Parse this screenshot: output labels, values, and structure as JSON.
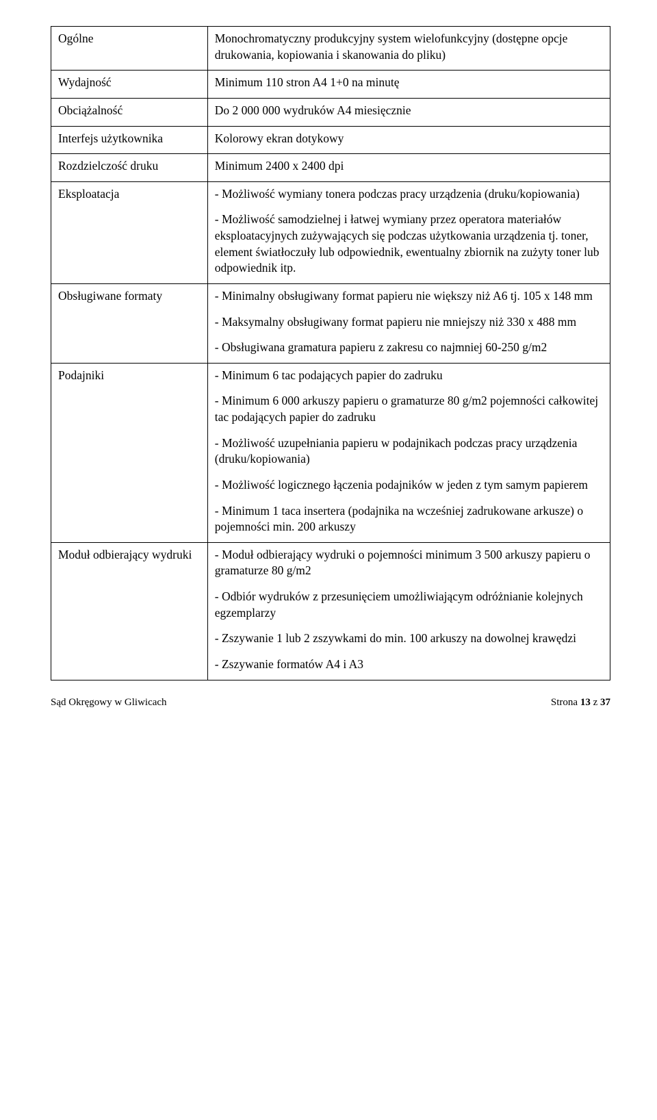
{
  "rows": [
    {
      "label": "Ogólne",
      "paras": [
        "Monochromatyczny produkcyjny system wielofunkcyjny (dostępne opcje drukowania, kopiowania i skanowania do pliku)"
      ]
    },
    {
      "label": "Wydajność",
      "paras": [
        "Minimum 110 stron A4 1+0 na minutę"
      ]
    },
    {
      "label": "Obciążalność",
      "paras": [
        "Do 2 000 000 wydruków A4 miesięcznie"
      ]
    },
    {
      "label": "Interfejs użytkownika",
      "paras": [
        "Kolorowy ekran dotykowy"
      ]
    },
    {
      "label": "Rozdzielczość druku",
      "paras": [
        "Minimum 2400 x 2400 dpi"
      ]
    },
    {
      "label": "Eksploatacja",
      "paras": [
        "- Możliwość wymiany tonera podczas pracy urządzenia (druku/kopiowania)",
        "- Możliwość samodzielnej i łatwej wymiany przez operatora materiałów eksploatacyjnych zużywających się podczas użytkowania urządzenia tj. toner, element światłoczuły lub odpowiednik, ewentualny zbiornik na zużyty toner lub odpowiednik itp."
      ]
    },
    {
      "label": "Obsługiwane formaty",
      "paras": [
        "- Minimalny obsługiwany format papieru nie większy niż A6 tj. 105 x 148 mm",
        "- Maksymalny obsługiwany format papieru nie mniejszy niż 330 x 488 mm",
        "- Obsługiwana gramatura papieru z zakresu co najmniej 60-250 g/m2"
      ]
    },
    {
      "label": "Podajniki",
      "paras": [
        "- Minimum 6 tac podających papier do zadruku",
        "- Minimum 6 000 arkuszy papieru o gramaturze 80 g/m2 pojemności całkowitej tac podających papier do zadruku",
        "- Możliwość uzupełniania papieru w podajnikach podczas pracy urządzenia (druku/kopiowania)",
        "- Możliwość logicznego łączenia podajników w jeden z tym samym papierem",
        "- Minimum 1 taca insertera (podajnika na wcześniej zadrukowane arkusze) o pojemności min. 200 arkuszy"
      ]
    },
    {
      "label": "Moduł odbierający wydruki",
      "paras": [
        "- Moduł odbierający wydruki o pojemności minimum 3 500 arkuszy papieru o gramaturze 80 g/m2",
        "- Odbiór wydruków z przesunięciem umożliwiającym odróżnianie kolejnych egzemplarzy",
        "- Zszywanie 1 lub 2 zszywkami do min. 100 arkuszy na dowolnej krawędzi",
        "- Zszywanie formatów A4 i A3"
      ]
    }
  ],
  "footer": {
    "left": "Sąd Okręgowy w Gliwicach",
    "right_prefix": "Strona ",
    "page_current": "13",
    "right_mid": " z ",
    "page_total": "37"
  }
}
